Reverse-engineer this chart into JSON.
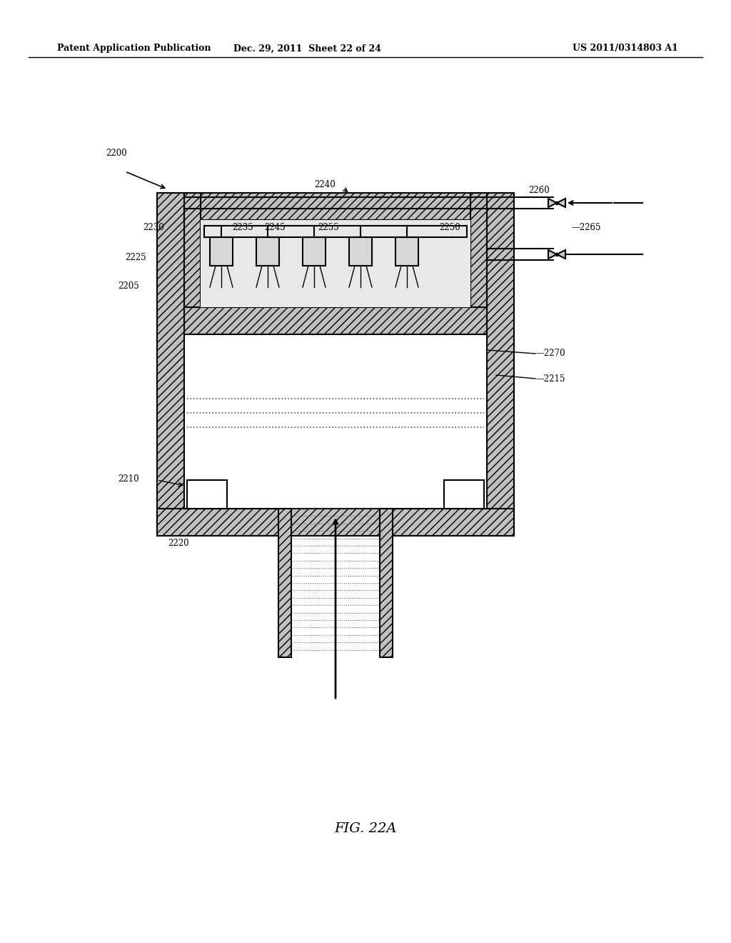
{
  "title_left": "Patent Application Publication",
  "title_mid": "Dec. 29, 2011  Sheet 22 of 24",
  "title_right": "US 2011/0314803 A1",
  "fig_label": "FIG. 22A",
  "background": "#ffffff",
  "hatch_color": "#aaaaaa",
  "line_color": "#000000"
}
